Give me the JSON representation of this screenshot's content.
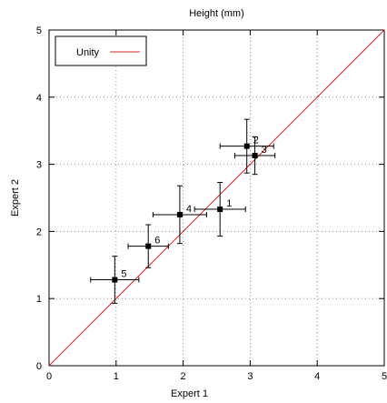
{
  "chart_data": {
    "type": "scatter",
    "title": "Height (mm)",
    "xlabel": "Expert 1",
    "ylabel": "Expert 2",
    "xlim": [
      0,
      5
    ],
    "ylim": [
      0,
      5
    ],
    "xticks": [
      "0",
      "1",
      "2",
      "3",
      "4",
      "5"
    ],
    "yticks": [
      "0",
      "1",
      "2",
      "3",
      "4",
      "5"
    ],
    "grid": true,
    "legend_position": "top-left",
    "series": [
      {
        "type": "scatter-errorbars",
        "points": [
          {
            "label": "1",
            "x": 2.55,
            "y": 2.33,
            "xerr": 0.38,
            "yerr": 0.4
          },
          {
            "label": "2",
            "x": 2.95,
            "y": 3.27,
            "xerr": 0.4,
            "yerr": 0.4
          },
          {
            "label": "3",
            "x": 3.07,
            "y": 3.13,
            "xerr": 0.3,
            "yerr": 0.28
          },
          {
            "label": "4",
            "x": 1.95,
            "y": 2.25,
            "xerr": 0.4,
            "yerr": 0.43
          },
          {
            "label": "5",
            "x": 0.98,
            "y": 1.28,
            "xerr": 0.36,
            "yerr": 0.35
          },
          {
            "label": "6",
            "x": 1.48,
            "y": 1.78,
            "xerr": 0.3,
            "yerr": 0.32
          }
        ]
      },
      {
        "name": "Unity",
        "type": "line",
        "color": "#e02020",
        "x": [
          0,
          5
        ],
        "y": [
          0,
          5
        ]
      }
    ]
  }
}
